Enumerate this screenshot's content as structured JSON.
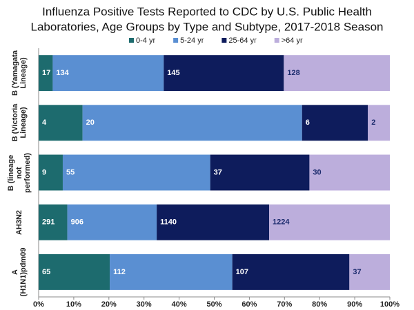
{
  "chart_data": {
    "type": "bar",
    "orientation": "horizontal",
    "stack": "percent",
    "title": [
      "Influenza Positive Tests Reported to CDC by U.S. Public Health",
      "Laboratories, Age Groups by Type and Subtype, 2017-2018 Season"
    ],
    "categories": [
      "B (Yamagata Lineage)",
      "B (Victoria Lineage)",
      "B (lineage not performed)",
      "AH3N2",
      "A (H1N1)pdm09"
    ],
    "series": [
      {
        "name": "0-4 yr",
        "color": "#1d6b6e",
        "label_color": "#ffffff",
        "values": [
          17,
          4,
          9,
          291,
          65
        ]
      },
      {
        "name": "5-24 yr",
        "color": "#5a8fd2",
        "label_color": "#ffffff",
        "values": [
          134,
          20,
          55,
          906,
          112
        ]
      },
      {
        "name": "25-64 yr",
        "color": "#0e1c5c",
        "label_color": "#ffffff",
        "values": [
          145,
          6,
          37,
          1140,
          107
        ]
      },
      {
        "name": ">64 yr",
        "color": "#bcaedc",
        "label_color": "#1a2a6c",
        "values": [
          128,
          2,
          30,
          1224,
          37
        ]
      }
    ],
    "xlim": [
      0,
      100
    ],
    "xticks": [
      {
        "value": 0,
        "label": "0%"
      },
      {
        "value": 10,
        "label": "10%"
      },
      {
        "value": 20,
        "label": "20%"
      },
      {
        "value": 30,
        "label": "30%"
      },
      {
        "value": 40,
        "label": "40%"
      },
      {
        "value": 50,
        "label": "50%"
      },
      {
        "value": 60,
        "label": "60%"
      },
      {
        "value": 70,
        "label": "70%"
      },
      {
        "value": 80,
        "label": "80%"
      },
      {
        "value": 90,
        "label": "90%"
      },
      {
        "value": 100,
        "label": "100%"
      }
    ],
    "legend": "top"
  }
}
